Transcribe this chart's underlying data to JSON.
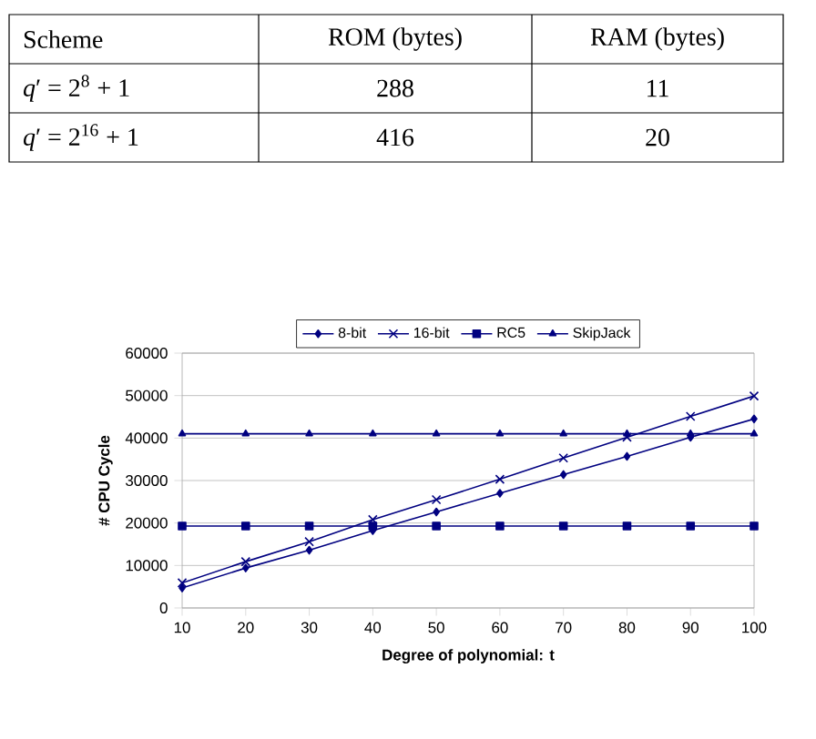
{
  "chart_data": [
    {
      "type": "other",
      "xlabel": "Scheme",
      "categories": [
        "*q*′ = 2$^{8}$ + 1",
        "*q*′ = 2$^{16}$ + 1"
      ],
      "data_labels": true,
      "series": [
        {
          "name": "ROM (bytes)",
          "values": [
            288,
            416
          ]
        },
        {
          "name": "RAM (bytes)",
          "values": [
            11,
            20
          ]
        }
      ]
    },
    {
      "type": "line",
      "xlabel": "Degree of polynomial: t",
      "ylabel": "# CPU Cycle",
      "x": [
        10,
        20,
        30,
        40,
        50,
        60,
        70,
        80,
        90,
        100
      ],
      "xlim": [
        10,
        100
      ],
      "xticks": [
        10,
        20,
        30,
        40,
        50,
        60,
        70,
        80,
        90,
        100
      ],
      "ylim": [
        0,
        60000
      ],
      "yticks": [
        0,
        10000,
        20000,
        30000,
        40000,
        50000,
        60000
      ],
      "grid": "y",
      "legend": "top",
      "series": [
        {
          "name": "8-bit",
          "color": "#000080",
          "marker": "diamond",
          "values": [
            4700,
            9400,
            13600,
            18200,
            22600,
            27000,
            31400,
            35700,
            40200,
            44500
          ]
        },
        {
          "name": "16-bit",
          "color": "#000080",
          "marker": "cross",
          "values": [
            5900,
            10900,
            15600,
            20800,
            25500,
            30300,
            35300,
            40200,
            45100,
            49900
          ]
        },
        {
          "name": "RC5",
          "color": "#000080",
          "marker": "square",
          "values": [
            19300,
            19300,
            19300,
            19300,
            19300,
            19300,
            19300,
            19300,
            19300,
            19300
          ]
        },
        {
          "name": "SkipJack",
          "color": "#000080",
          "marker": "triangle",
          "values": [
            41000,
            41000,
            41000,
            41000,
            41000,
            41000,
            41000,
            41000,
            41000,
            41000
          ]
        }
      ]
    }
  ]
}
